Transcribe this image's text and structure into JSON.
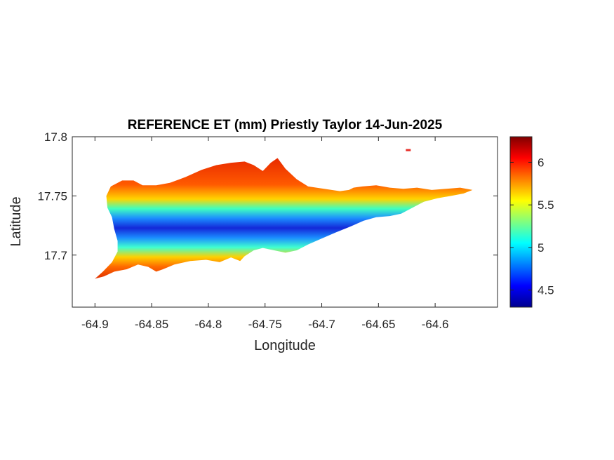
{
  "chart_data": {
    "type": "heatmap",
    "title": "REFERENCE ET (mm) Priestly Taylor 14-Jun-2025",
    "xlabel": "Longitude",
    "ylabel": "Latitude",
    "xlim": [
      -64.92,
      -64.545
    ],
    "ylim": [
      17.656,
      17.8
    ],
    "x_ticks": [
      -64.9,
      -64.85,
      -64.8,
      -64.75,
      -64.7,
      -64.65,
      -64.6
    ],
    "x_tick_labels": [
      "-64.9",
      "-64.85",
      "-64.8",
      "-64.75",
      "-64.7",
      "-64.65",
      "-64.6"
    ],
    "y_ticks": [
      17.7,
      17.75,
      17.8
    ],
    "y_tick_labels": [
      "17.7",
      "17.75",
      "17.8"
    ],
    "colormap": "jet",
    "clim": [
      4.3,
      6.3
    ],
    "colorbar_ticks": [
      4.5,
      5,
      5.5,
      6
    ],
    "colorbar_tick_labels": [
      "4.5",
      "5",
      "5.5",
      "6"
    ],
    "grid": false,
    "field": {
      "description_values": "ET is lowest along a central east-west band and highest on the north and south coasts",
      "low_band_value": 4.5,
      "coast_value": 6.0
    },
    "outline": [
      [
        -64.9,
        17.68
      ],
      [
        -64.893,
        17.686
      ],
      [
        -64.885,
        17.694
      ],
      [
        -64.88,
        17.703
      ],
      [
        -64.88,
        17.712
      ],
      [
        -64.883,
        17.722
      ],
      [
        -64.885,
        17.732
      ],
      [
        -64.889,
        17.74
      ],
      [
        -64.89,
        17.75
      ],
      [
        -64.886,
        17.758
      ],
      [
        -64.876,
        17.763
      ],
      [
        -64.866,
        17.763
      ],
      [
        -64.858,
        17.759
      ],
      [
        -64.846,
        17.759
      ],
      [
        -64.834,
        17.761
      ],
      [
        -64.82,
        17.766
      ],
      [
        -64.806,
        17.772
      ],
      [
        -64.793,
        17.776
      ],
      [
        -64.78,
        17.778
      ],
      [
        -64.768,
        17.779
      ],
      [
        -64.76,
        17.776
      ],
      [
        -64.752,
        17.771
      ],
      [
        -64.745,
        17.778
      ],
      [
        -64.739,
        17.782
      ],
      [
        -64.732,
        17.773
      ],
      [
        -64.722,
        17.764
      ],
      [
        -64.712,
        17.758
      ],
      [
        -64.698,
        17.756
      ],
      [
        -64.684,
        17.754
      ],
      [
        -64.676,
        17.755
      ],
      [
        -64.672,
        17.757
      ],
      [
        -64.664,
        17.758
      ],
      [
        -64.652,
        17.759
      ],
      [
        -64.64,
        17.757
      ],
      [
        -64.628,
        17.756
      ],
      [
        -64.616,
        17.757
      ],
      [
        -64.603,
        17.755
      ],
      [
        -64.59,
        17.756
      ],
      [
        -64.578,
        17.757
      ],
      [
        -64.567,
        17.755
      ],
      [
        -64.575,
        17.752
      ],
      [
        -64.586,
        17.75
      ],
      [
        -64.598,
        17.748
      ],
      [
        -64.61,
        17.745
      ],
      [
        -64.62,
        17.74
      ],
      [
        -64.63,
        17.735
      ],
      [
        -64.64,
        17.733
      ],
      [
        -64.652,
        17.732
      ],
      [
        -64.663,
        17.729
      ],
      [
        -64.675,
        17.724
      ],
      [
        -64.688,
        17.719
      ],
      [
        -64.7,
        17.714
      ],
      [
        -64.712,
        17.709
      ],
      [
        -64.722,
        17.704
      ],
      [
        -64.732,
        17.702
      ],
      [
        -64.742,
        17.704
      ],
      [
        -64.752,
        17.706
      ],
      [
        -64.76,
        17.704
      ],
      [
        -64.768,
        17.699
      ],
      [
        -64.772,
        17.695
      ],
      [
        -64.78,
        17.698
      ],
      [
        -64.79,
        17.694
      ],
      [
        -64.802,
        17.696
      ],
      [
        -64.816,
        17.695
      ],
      [
        -64.83,
        17.692
      ],
      [
        -64.84,
        17.688
      ],
      [
        -64.846,
        17.686
      ],
      [
        -64.853,
        17.69
      ],
      [
        -64.862,
        17.692
      ],
      [
        -64.872,
        17.688
      ],
      [
        -64.883,
        17.686
      ],
      [
        -64.892,
        17.682
      ]
    ],
    "islet": [
      -64.624,
      17.789
    ]
  }
}
